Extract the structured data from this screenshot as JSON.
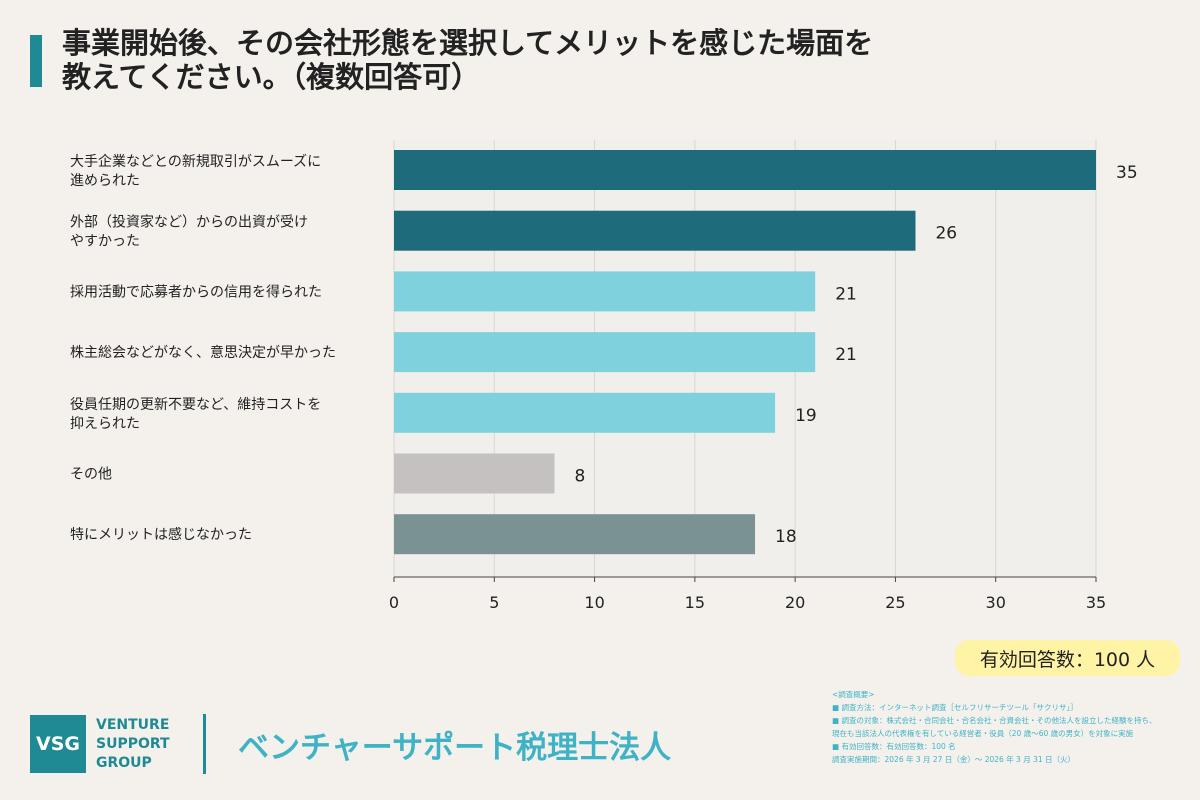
{
  "title": "事業開始後、その会社形態を選択してメリットを感じた場面を\n教えてください。（複数回答可）",
  "respondents_badge": "有効回答数：100 人",
  "chart_data": {
    "type": "bar",
    "orientation": "horizontal",
    "categories": [
      "大手企業などとの新規取引がスムーズに\n進められた",
      "外部（投資家など）からの出資が受け\nやすかった",
      "採用活動で応募者からの信用を得られた",
      "株主総会などがなく、意思決定が早かった",
      "役員任期の更新不要など、維持コストを\n抑えられた",
      "その他",
      "特にメリットは感じなかった"
    ],
    "values": [
      35,
      26,
      21,
      21,
      19,
      8,
      18
    ],
    "colors": [
      "#1e6b7b",
      "#1e6b7b",
      "#7fd1de",
      "#7fd1de",
      "#7fd1de",
      "#c4c1c0",
      "#7a9292"
    ],
    "xlim": [
      0,
      35
    ],
    "xticks": [
      0,
      5,
      10,
      15,
      20,
      25,
      30,
      35
    ],
    "grid": true
  },
  "footer": {
    "logo_mark": "VSG",
    "logo_words": [
      "VENTURE",
      "SUPPORT",
      "GROUP"
    ],
    "company_name": "ベンチャーサポート税理士法人",
    "survey_notes": [
      "<調査概要>",
      "■ 調査方法：インターネット調査［セルフリサーチツール「サクリサ」］",
      "■ 調査の対象：株式会社・合同会社・合名会社・合資会社・その他法人を設立した経験を持ち、",
      "現在も当該法人の代表権を有している経営者・役員（20 歳〜60 歳の男女）を対象に実施",
      "■ 有効回答数：有効回答数：100 名",
      "調査実施期間：2026 年 3 月 27 日（金）〜 2026 年 3 月 31 日（火）"
    ]
  }
}
